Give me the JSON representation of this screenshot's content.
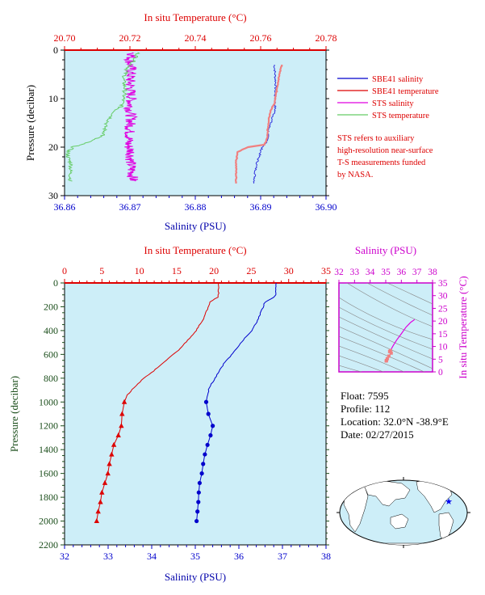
{
  "colors": {
    "salinity": "#0000cc",
    "temperature": "#dd0000",
    "sts_salinity": "#e000e0",
    "sts_temperature": "#66cc66",
    "sbe_sal_thin": "#3333dd",
    "sbe_temp_thin": "#f08080",
    "plot_bg": "#cdeef8",
    "pressure_axis": "#1a4d1a",
    "ts_axis": "#cc00cc"
  },
  "chart_data": [
    {
      "type": "line",
      "title": "",
      "top_axis_label": "In situ Temperature (°C)",
      "top_ticks": [
        "20.70",
        "20.72",
        "20.74",
        "20.76",
        "20.78"
      ],
      "top_range": [
        20.7,
        20.78
      ],
      "bottom_axis_label": "Salinity (PSU)",
      "bottom_ticks": [
        "36.86",
        "36.87",
        "36.88",
        "36.89",
        "36.90"
      ],
      "bottom_range": [
        36.86,
        36.9
      ],
      "ylabel": "Pressure (decibar)",
      "y_ticks": [
        "0",
        "10",
        "20",
        "30"
      ],
      "yrange": [
        0,
        30
      ],
      "grid": false,
      "legend": {
        "placement": "right",
        "items": [
          {
            "name": "SBE41 salinity",
            "color": "#0000cc"
          },
          {
            "name": "SBE41 temperature",
            "color": "#dd0000"
          },
          {
            "name": "STS salinity",
            "color": "#e000e0"
          },
          {
            "name": "STS temperature",
            "color": "#66cc66"
          }
        ]
      },
      "note_lines": [
        "STS refers to auxiliary",
        "high-resolution near-surface",
        "T-S measurements funded",
        "by NASA."
      ],
      "series": [
        {
          "key": "sbe_sal",
          "axis": "bottom",
          "points": [
            [
              36.8921,
              3.0
            ],
            [
              36.8922,
              5.0
            ],
            [
              36.8923,
              7.0
            ],
            [
              36.8922,
              9.0
            ],
            [
              36.8922,
              11.0
            ],
            [
              36.8922,
              12.5
            ],
            [
              36.8918,
              14.0
            ],
            [
              36.8913,
              16.0
            ],
            [
              36.8911,
              17.5
            ],
            [
              36.891,
              19.0
            ],
            [
              36.8902,
              20.0
            ],
            [
              36.89,
              21.0
            ],
            [
              36.8896,
              22.5
            ],
            [
              36.8893,
              24.0
            ],
            [
              36.8891,
              26.0
            ],
            [
              36.889,
              27.5
            ]
          ]
        },
        {
          "key": "sbe_temp",
          "axis": "top",
          "points": [
            [
              20.7665,
              3.0
            ],
            [
              20.7658,
              5.0
            ],
            [
              20.7652,
              7.0
            ],
            [
              20.7648,
              9.0
            ],
            [
              20.7642,
              11.0
            ],
            [
              20.763,
              12.5
            ],
            [
              20.7625,
              14.0
            ],
            [
              20.7622,
              16.0
            ],
            [
              20.762,
              18.0
            ],
            [
              20.7612,
              19.5
            ],
            [
              20.756,
              20.0
            ],
            [
              20.753,
              21.0
            ],
            [
              20.7525,
              23.0
            ],
            [
              20.7525,
              25.0
            ],
            [
              20.7525,
              27.5
            ]
          ]
        },
        {
          "key": "sts_sal",
          "axis": "bottom",
          "points": [
            [
              36.8705,
              0.5
            ],
            [
              36.87,
              2.0
            ],
            [
              36.8702,
              4.0
            ],
            [
              36.87,
              6.0
            ],
            [
              36.8701,
              8.0
            ],
            [
              36.8702,
              10.0
            ],
            [
              36.87,
              12.0
            ],
            [
              36.8702,
              14.0
            ],
            [
              36.87,
              16.0
            ],
            [
              36.8699,
              18.0
            ],
            [
              36.8697,
              19.5
            ],
            [
              36.8702,
              21.0
            ],
            [
              36.8701,
              23.0
            ],
            [
              36.8703,
              25.0
            ],
            [
              36.8705,
              27.0
            ]
          ]
        },
        {
          "key": "sts_temp",
          "axis": "top",
          "points": [
            [
              20.7225,
              0.5
            ],
            [
              20.7215,
              2.0
            ],
            [
              20.719,
              4.0
            ],
            [
              20.718,
              6.0
            ],
            [
              20.7185,
              8.0
            ],
            [
              20.718,
              10.0
            ],
            [
              20.7175,
              11.5
            ],
            [
              20.7155,
              12.5
            ],
            [
              20.714,
              14.0
            ],
            [
              20.7125,
              15.5
            ],
            [
              20.712,
              17.5
            ],
            [
              20.707,
              19.0
            ],
            [
              20.7025,
              20.0
            ],
            [
              20.701,
              21.0
            ],
            [
              20.701,
              22.0
            ],
            [
              20.702,
              23.5
            ],
            [
              20.7018,
              25.0
            ],
            [
              20.7018,
              27.0
            ]
          ]
        }
      ]
    },
    {
      "type": "line",
      "title": "",
      "top_axis_label": "In situ Temperature (°C)",
      "top_ticks": [
        "0",
        "5",
        "10",
        "15",
        "20",
        "25",
        "30",
        "35"
      ],
      "top_range": [
        0,
        35
      ],
      "bottom_axis_label": "Salinity (PSU)",
      "bottom_ticks": [
        "32",
        "33",
        "34",
        "35",
        "36",
        "37",
        "38"
      ],
      "bottom_range": [
        32,
        38
      ],
      "ylabel": "Pressure (decibar)",
      "y_ticks": [
        "0",
        "200",
        "400",
        "600",
        "800",
        "1000",
        "1200",
        "1400",
        "1600",
        "1800",
        "2000",
        "2200"
      ],
      "yrange": [
        0,
        2200
      ],
      "grid": false,
      "series": [
        {
          "key": "temp",
          "axis": "top",
          "points": [
            [
              20.6,
              0
            ],
            [
              20.6,
              100
            ],
            [
              20.5,
              120
            ],
            [
              19.5,
              160
            ],
            [
              18.6,
              300
            ],
            [
              17.6,
              400
            ],
            [
              16.5,
              480
            ],
            [
              15.5,
              550
            ],
            [
              14.2,
              620
            ],
            [
              13.0,
              680
            ],
            [
              11.9,
              740
            ],
            [
              10.6,
              800
            ],
            [
              9.3,
              880
            ],
            [
              8.4,
              940
            ],
            [
              8.0,
              1000
            ],
            [
              7.7,
              1100
            ],
            [
              7.6,
              1200
            ],
            [
              7.2,
              1280
            ],
            [
              6.6,
              1360
            ],
            [
              6.3,
              1440
            ],
            [
              6.0,
              1520
            ],
            [
              5.8,
              1600
            ],
            [
              5.4,
              1680
            ],
            [
              5.0,
              1760
            ],
            [
              4.8,
              1840
            ],
            [
              4.5,
              1920
            ],
            [
              4.3,
              2000
            ]
          ]
        },
        {
          "key": "sal",
          "axis": "bottom",
          "points": [
            [
              36.85,
              0
            ],
            [
              36.85,
              100
            ],
            [
              36.8,
              120
            ],
            [
              36.6,
              160
            ],
            [
              36.45,
              300
            ],
            [
              36.3,
              400
            ],
            [
              36.1,
              480
            ],
            [
              35.95,
              550
            ],
            [
              35.8,
              620
            ],
            [
              35.65,
              680
            ],
            [
              35.55,
              740
            ],
            [
              35.45,
              800
            ],
            [
              35.32,
              880
            ],
            [
              35.28,
              940
            ],
            [
              35.25,
              1000
            ],
            [
              35.3,
              1100
            ],
            [
              35.4,
              1200
            ],
            [
              35.35,
              1280
            ],
            [
              35.28,
              1360
            ],
            [
              35.22,
              1440
            ],
            [
              35.18,
              1520
            ],
            [
              35.15,
              1600
            ],
            [
              35.1,
              1680
            ],
            [
              35.08,
              1760
            ],
            [
              35.07,
              1840
            ],
            [
              35.05,
              1920
            ],
            [
              35.03,
              2000
            ]
          ]
        }
      ]
    },
    {
      "type": "scatter",
      "title": "",
      "top_axis_label": "Salinity (PSU)",
      "top_ticks": [
        "32",
        "33",
        "34",
        "35",
        "36",
        "37",
        "38"
      ],
      "top_range": [
        32,
        38
      ],
      "right_axis_label": "In situ Temperature (°C)",
      "right_ticks": [
        "0",
        "5",
        "10",
        "15",
        "20",
        "25",
        "30",
        "35"
      ],
      "right_range": [
        0,
        35
      ],
      "grid": false,
      "points": [
        [
          36.85,
          20.6
        ],
        [
          36.6,
          19.5
        ],
        [
          36.3,
          17.6
        ],
        [
          36.0,
          15.0
        ],
        [
          35.7,
          12.5
        ],
        [
          35.5,
          10.6
        ],
        [
          35.3,
          8.4
        ],
        [
          35.25,
          8.0
        ],
        [
          35.35,
          7.4
        ],
        [
          35.2,
          6.2
        ],
        [
          35.1,
          5.2
        ],
        [
          35.05,
          4.5
        ],
        [
          35.03,
          4.3
        ]
      ]
    }
  ],
  "info": {
    "float": "Float:  7595",
    "profile": "Profile:  112",
    "location": "Location:  32.0°N  -38.9°E",
    "date": "Date:  02/27/2015"
  }
}
